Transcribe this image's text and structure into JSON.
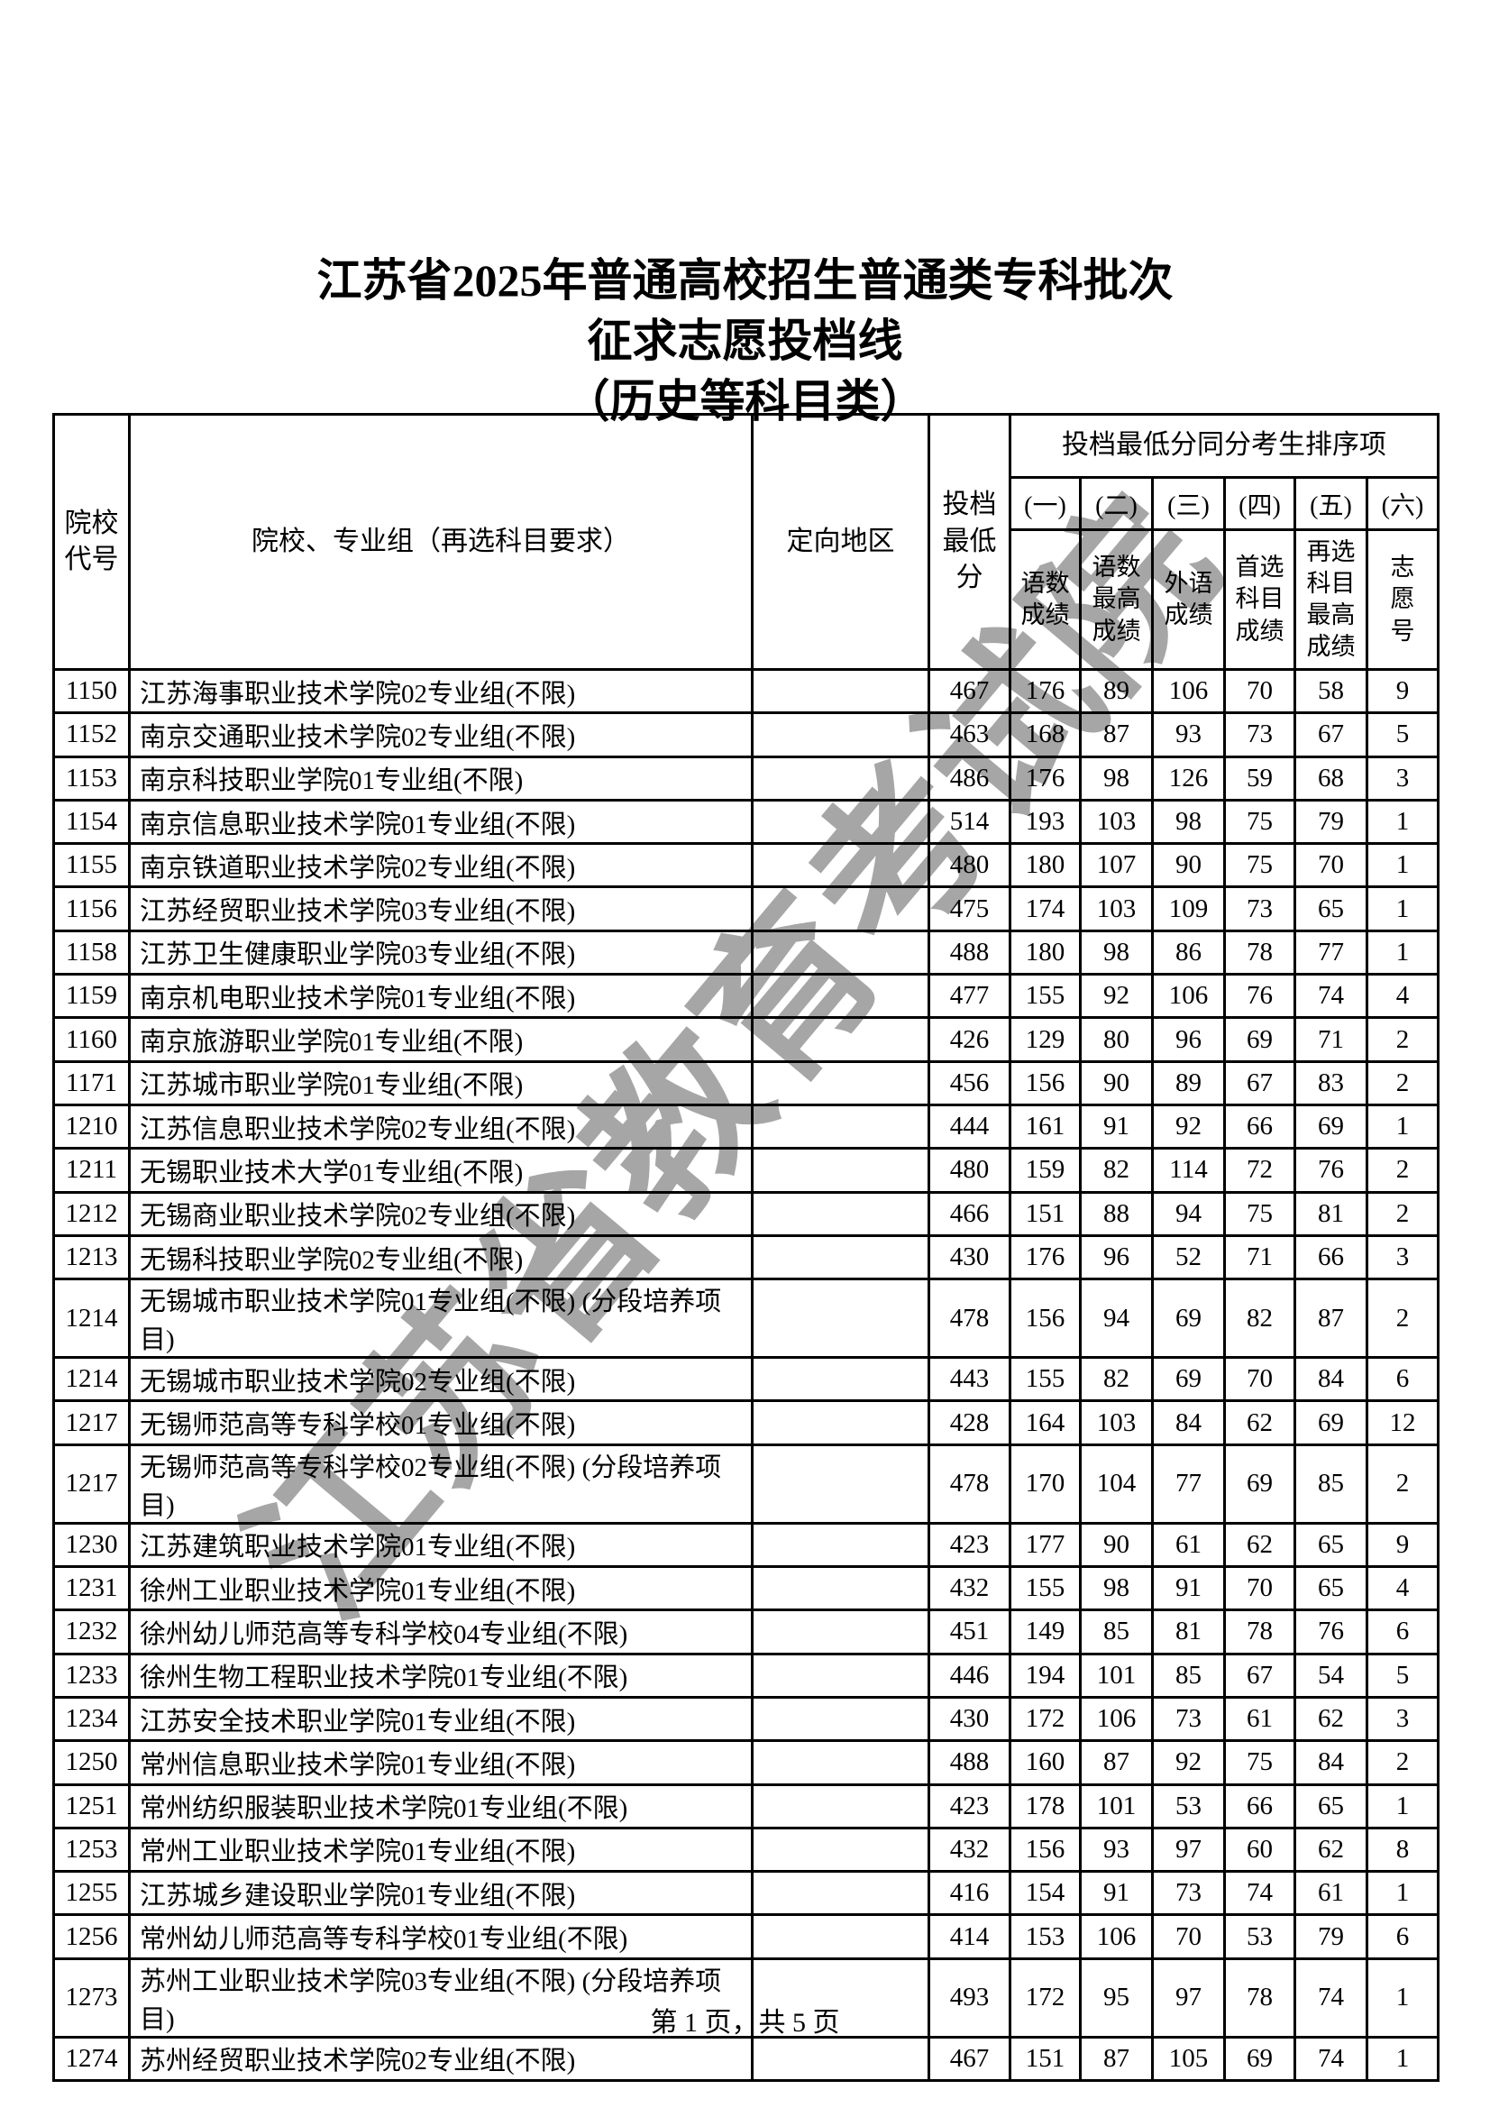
{
  "title": {
    "line1": "江苏省2025年普通高校招生普通类专科批次",
    "line2": "征求志愿投档线",
    "line3": "（历史等科目类）"
  },
  "watermark": "江苏省教育考试院",
  "footer": "第 1 页，共 5 页",
  "table": {
    "headers": {
      "code": "院校\n代号",
      "group": "院校、专业组（再选科目要求）",
      "region": "定向地区",
      "min_score": "投档\n最低\n分",
      "tiebreak_title": "投档最低分同分考生排序项",
      "sub": [
        {
          "num": "(一)",
          "label": "语数\n成绩"
        },
        {
          "num": "(二)",
          "label": "语数\n最高\n成绩"
        },
        {
          "num": "(三)",
          "label": "外语\n成绩"
        },
        {
          "num": "(四)",
          "label": "首选\n科目\n成绩"
        },
        {
          "num": "(五)",
          "label": "再选\n科目\n最高\n成绩"
        },
        {
          "num": "(六)",
          "label": "志\n愿\n号"
        }
      ]
    },
    "rows": [
      [
        "1150",
        "江苏海事职业技术学院02专业组(不限)",
        "",
        "467",
        "176",
        "89",
        "106",
        "70",
        "58",
        "9"
      ],
      [
        "1152",
        "南京交通职业技术学院02专业组(不限)",
        "",
        "463",
        "168",
        "87",
        "93",
        "73",
        "67",
        "5"
      ],
      [
        "1153",
        "南京科技职业学院01专业组(不限)",
        "",
        "486",
        "176",
        "98",
        "126",
        "59",
        "68",
        "3"
      ],
      [
        "1154",
        "南京信息职业技术学院01专业组(不限)",
        "",
        "514",
        "193",
        "103",
        "98",
        "75",
        "79",
        "1"
      ],
      [
        "1155",
        "南京铁道职业技术学院02专业组(不限)",
        "",
        "480",
        "180",
        "107",
        "90",
        "75",
        "70",
        "1"
      ],
      [
        "1156",
        "江苏经贸职业技术学院03专业组(不限)",
        "",
        "475",
        "174",
        "103",
        "109",
        "73",
        "65",
        "1"
      ],
      [
        "1158",
        "江苏卫生健康职业学院03专业组(不限)",
        "",
        "488",
        "180",
        "98",
        "86",
        "78",
        "77",
        "1"
      ],
      [
        "1159",
        "南京机电职业技术学院01专业组(不限)",
        "",
        "477",
        "155",
        "92",
        "106",
        "76",
        "74",
        "4"
      ],
      [
        "1160",
        "南京旅游职业学院01专业组(不限)",
        "",
        "426",
        "129",
        "80",
        "96",
        "69",
        "71",
        "2"
      ],
      [
        "1171",
        "江苏城市职业学院01专业组(不限)",
        "",
        "456",
        "156",
        "90",
        "89",
        "67",
        "83",
        "2"
      ],
      [
        "1210",
        "江苏信息职业技术学院02专业组(不限)",
        "",
        "444",
        "161",
        "91",
        "92",
        "66",
        "69",
        "1"
      ],
      [
        "1211",
        "无锡职业技术大学01专业组(不限)",
        "",
        "480",
        "159",
        "82",
        "114",
        "72",
        "76",
        "2"
      ],
      [
        "1212",
        "无锡商业职业技术学院02专业组(不限)",
        "",
        "466",
        "151",
        "88",
        "94",
        "75",
        "81",
        "2"
      ],
      [
        "1213",
        "无锡科技职业学院02专业组(不限)",
        "",
        "430",
        "176",
        "96",
        "52",
        "71",
        "66",
        "3"
      ],
      [
        "1214",
        "无锡城市职业技术学院01专业组(不限) (分段培养项目)",
        "",
        "478",
        "156",
        "94",
        "69",
        "82",
        "87",
        "2"
      ],
      [
        "1214",
        "无锡城市职业技术学院02专业组(不限)",
        "",
        "443",
        "155",
        "82",
        "69",
        "70",
        "84",
        "6"
      ],
      [
        "1217",
        "无锡师范高等专科学校01专业组(不限)",
        "",
        "428",
        "164",
        "103",
        "84",
        "62",
        "69",
        "12"
      ],
      [
        "1217",
        "无锡师范高等专科学校02专业组(不限) (分段培养项目)",
        "",
        "478",
        "170",
        "104",
        "77",
        "69",
        "85",
        "2"
      ],
      [
        "1230",
        "江苏建筑职业技术学院01专业组(不限)",
        "",
        "423",
        "177",
        "90",
        "61",
        "62",
        "65",
        "9"
      ],
      [
        "1231",
        "徐州工业职业技术学院01专业组(不限)",
        "",
        "432",
        "155",
        "98",
        "91",
        "70",
        "65",
        "4"
      ],
      [
        "1232",
        "徐州幼儿师范高等专科学校04专业组(不限)",
        "",
        "451",
        "149",
        "85",
        "81",
        "78",
        "76",
        "6"
      ],
      [
        "1233",
        "徐州生物工程职业技术学院01专业组(不限)",
        "",
        "446",
        "194",
        "101",
        "85",
        "67",
        "54",
        "5"
      ],
      [
        "1234",
        "江苏安全技术职业学院01专业组(不限)",
        "",
        "430",
        "172",
        "106",
        "73",
        "61",
        "62",
        "3"
      ],
      [
        "1250",
        "常州信息职业技术学院01专业组(不限)",
        "",
        "488",
        "160",
        "87",
        "92",
        "75",
        "84",
        "2"
      ],
      [
        "1251",
        "常州纺织服装职业技术学院01专业组(不限)",
        "",
        "423",
        "178",
        "101",
        "53",
        "66",
        "65",
        "1"
      ],
      [
        "1253",
        "常州工业职业技术学院01专业组(不限)",
        "",
        "432",
        "156",
        "93",
        "97",
        "60",
        "62",
        "8"
      ],
      [
        "1255",
        "江苏城乡建设职业学院01专业组(不限)",
        "",
        "416",
        "154",
        "91",
        "73",
        "74",
        "61",
        "1"
      ],
      [
        "1256",
        "常州幼儿师范高等专科学校01专业组(不限)",
        "",
        "414",
        "153",
        "106",
        "70",
        "53",
        "79",
        "6"
      ],
      [
        "1273",
        "苏州工业职业技术学院03专业组(不限) (分段培养项目)",
        "",
        "493",
        "172",
        "95",
        "97",
        "78",
        "74",
        "1"
      ],
      [
        "1274",
        "苏州经贸职业技术学院02专业组(不限)",
        "",
        "467",
        "151",
        "87",
        "105",
        "69",
        "74",
        "1"
      ]
    ]
  }
}
